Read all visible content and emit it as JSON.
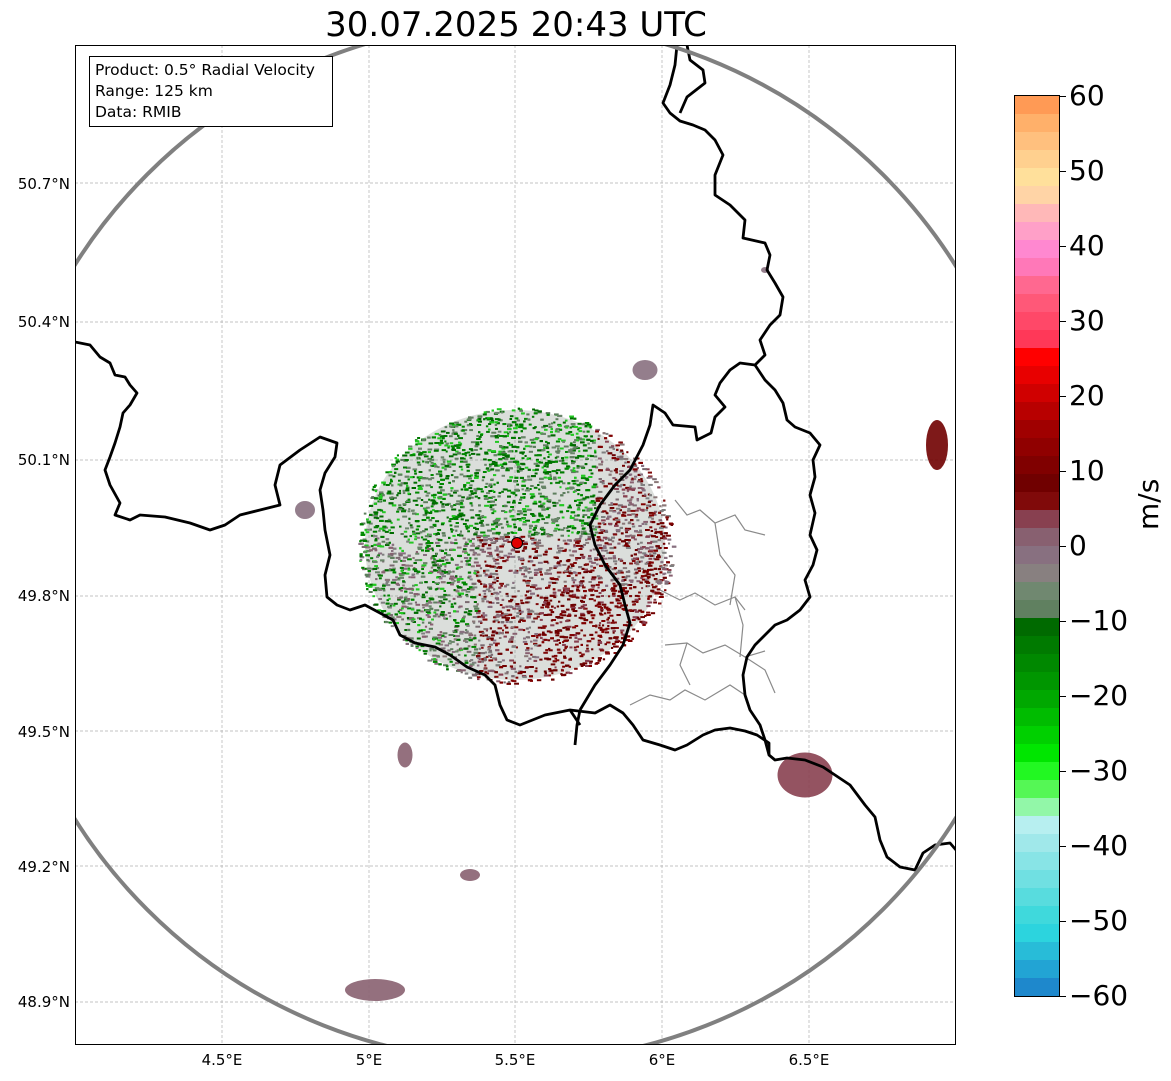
{
  "map": {
    "title": "30.07.2025 20:43 UTC",
    "info_box": {
      "product": "Product: 0.5° Radial Velocity",
      "range": "Range: 125 km",
      "data": "Data: RMIB"
    },
    "lon_ticks": [
      "4.5°E",
      "5°E",
      "5.5°E",
      "6°E",
      "6.5°E"
    ],
    "lat_ticks": [
      "50.7°N",
      "50.4°N",
      "50.1°N",
      "49.8°N",
      "49.5°N",
      "49.2°N",
      "48.9°N"
    ],
    "radar_site": {
      "lon": 5.5,
      "lat": 49.91
    },
    "colorbar": {
      "unit": "m/s",
      "range": [
        -60,
        60
      ],
      "tick_labels": [
        "60",
        "50",
        "40",
        "30",
        "20",
        "10",
        "0",
        "−10",
        "−20",
        "−30",
        "−40",
        "−50",
        "−60"
      ],
      "colors_top_to_bottom": [
        "#ff9a55",
        "#ffb06a",
        "#ffc07e",
        "#ffd08f",
        "#ffe09b",
        "#ffd4a6",
        "#ffb8b8",
        "#ffa0c8",
        "#ff88d0",
        "#ff78b8",
        "#ff6890",
        "#ff5878",
        "#ff4868",
        "#ff3858",
        "#ff0000",
        "#e80000",
        "#d00000",
        "#b80000",
        "#a00000",
        "#900000",
        "#800000",
        "#700000",
        "#800a0a",
        "#884050",
        "#886070",
        "#887080",
        "#888080",
        "#708870",
        "#608060",
        "#006a00",
        "#007a00",
        "#008800",
        "#009600",
        "#00a800",
        "#00bc00",
        "#00d000",
        "#00e600",
        "#22f822",
        "#55f755",
        "#92f7a8",
        "#b7eff0",
        "#a0e8ea",
        "#88e4e6",
        "#70e0e2",
        "#58dcde",
        "#3fd9dc",
        "#2cd4de",
        "#28bcd8",
        "#22a4d4",
        "#1e88cc"
      ]
    },
    "colors": {
      "border": "#000000",
      "range_ring": "#808080",
      "grid": "#b0b0b0",
      "radar_site": "#e00000"
    }
  }
}
